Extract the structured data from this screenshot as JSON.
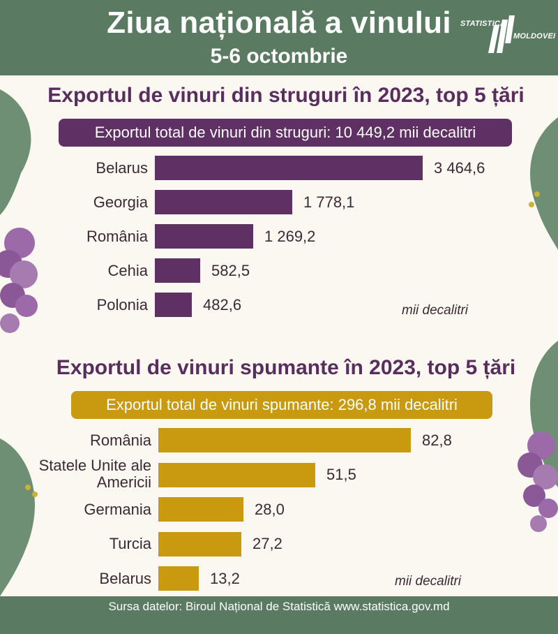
{
  "header": {
    "title": "Ziua națională a vinului",
    "date": "5-6 octombrie",
    "logo_line1": "STATISTICA",
    "logo_line2": "MOLDOVEI"
  },
  "colors": {
    "header_bg": "#5a7a62",
    "panel_bg": "#fbf8f2",
    "purple": "#5e3063",
    "gold": "#c99a0f",
    "text": "#3b2a34"
  },
  "chart_data": [
    {
      "type": "bar",
      "orientation": "horizontal",
      "title": "Exportul de vinuri din struguri în 2023, top 5 țări",
      "total_label": "Exportul total de vinuri din struguri: 10 449,2 mii decalitri",
      "unit": "mii decalitri",
      "categories": [
        "Belarus",
        "Georgia",
        "România",
        "Cehia",
        "Polonia"
      ],
      "values": [
        3464.6,
        1778.1,
        1269.2,
        582.5,
        482.6
      ],
      "value_labels": [
        "3 464,6",
        "1 778,1",
        "1 269,2",
        "582,5",
        "482,6"
      ],
      "color": "#5e3063"
    },
    {
      "type": "bar",
      "orientation": "horizontal",
      "title": "Exportul de vinuri spumante în 2023, top 5 țări",
      "total_label": "Exportul total de vinuri spumante: 296,8 mii decalitri",
      "unit": "mii decalitri",
      "categories": [
        "România",
        "Statele Unite ale Americii",
        "Germania",
        "Turcia",
        "Belarus"
      ],
      "values": [
        82.8,
        51.5,
        28.0,
        27.2,
        13.2
      ],
      "value_labels": [
        "82,8",
        "51,5",
        "28,0",
        "27,2",
        "13,2"
      ],
      "color": "#c99a0f"
    }
  ],
  "footer": {
    "source": "Sursa datelor: Biroul Național de Statistică www.statistica.gov.md"
  }
}
